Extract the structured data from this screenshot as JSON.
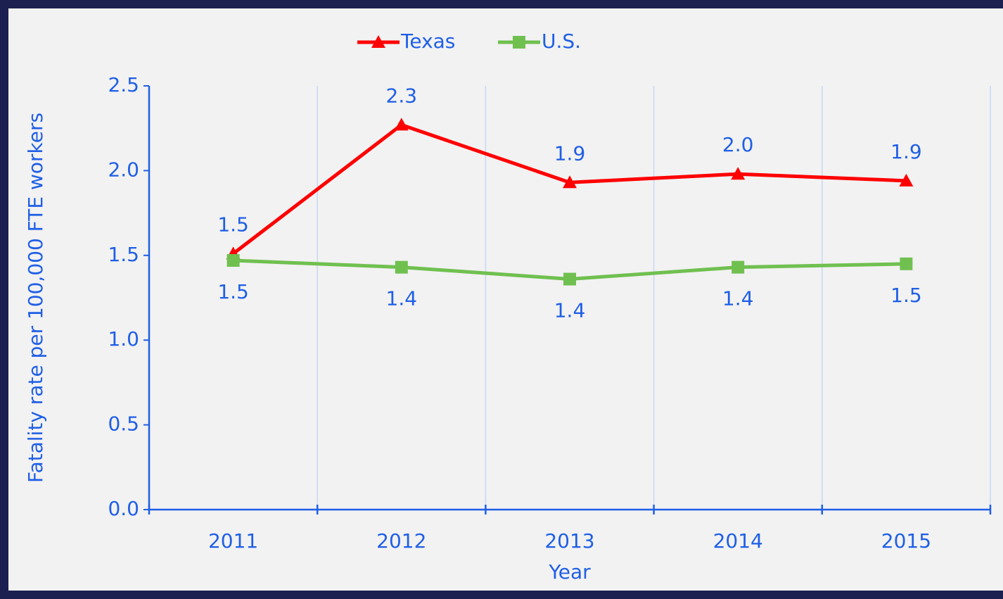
{
  "chart_data": {
    "type": "line",
    "x_label": "Year",
    "y_label": "Fatality rate per 100,000 FTE workers",
    "categories": [
      "2011",
      "2012",
      "2013",
      "2014",
      "2015"
    ],
    "series": [
      {
        "name": "Texas",
        "color": "#ff0000",
        "marker": "triangle",
        "values": [
          1.51,
          2.27,
          1.93,
          1.98,
          1.94
        ],
        "value_labels": [
          "1.5",
          "2.3",
          "1.9",
          "2.0",
          "1.9"
        ],
        "label_position": "above"
      },
      {
        "name": "U.S.",
        "color": "#70c050",
        "marker": "square",
        "values": [
          1.47,
          1.43,
          1.36,
          1.43,
          1.45
        ],
        "value_labels": [
          "1.5",
          "1.4",
          "1.4",
          "1.4",
          "1.5"
        ],
        "label_position": "below"
      }
    ],
    "ylim": [
      0,
      2.5
    ],
    "yticks": [
      {
        "value": 0,
        "label": "0.0"
      },
      {
        "value": 0.5,
        "label": "0.5"
      },
      {
        "value": 1,
        "label": "1.0"
      },
      {
        "value": 1.5,
        "label": "1.5"
      },
      {
        "value": 2,
        "label": "2.0"
      },
      {
        "value": 2.5,
        "label": "2.5"
      }
    ],
    "grid": "x",
    "legend": "top"
  }
}
